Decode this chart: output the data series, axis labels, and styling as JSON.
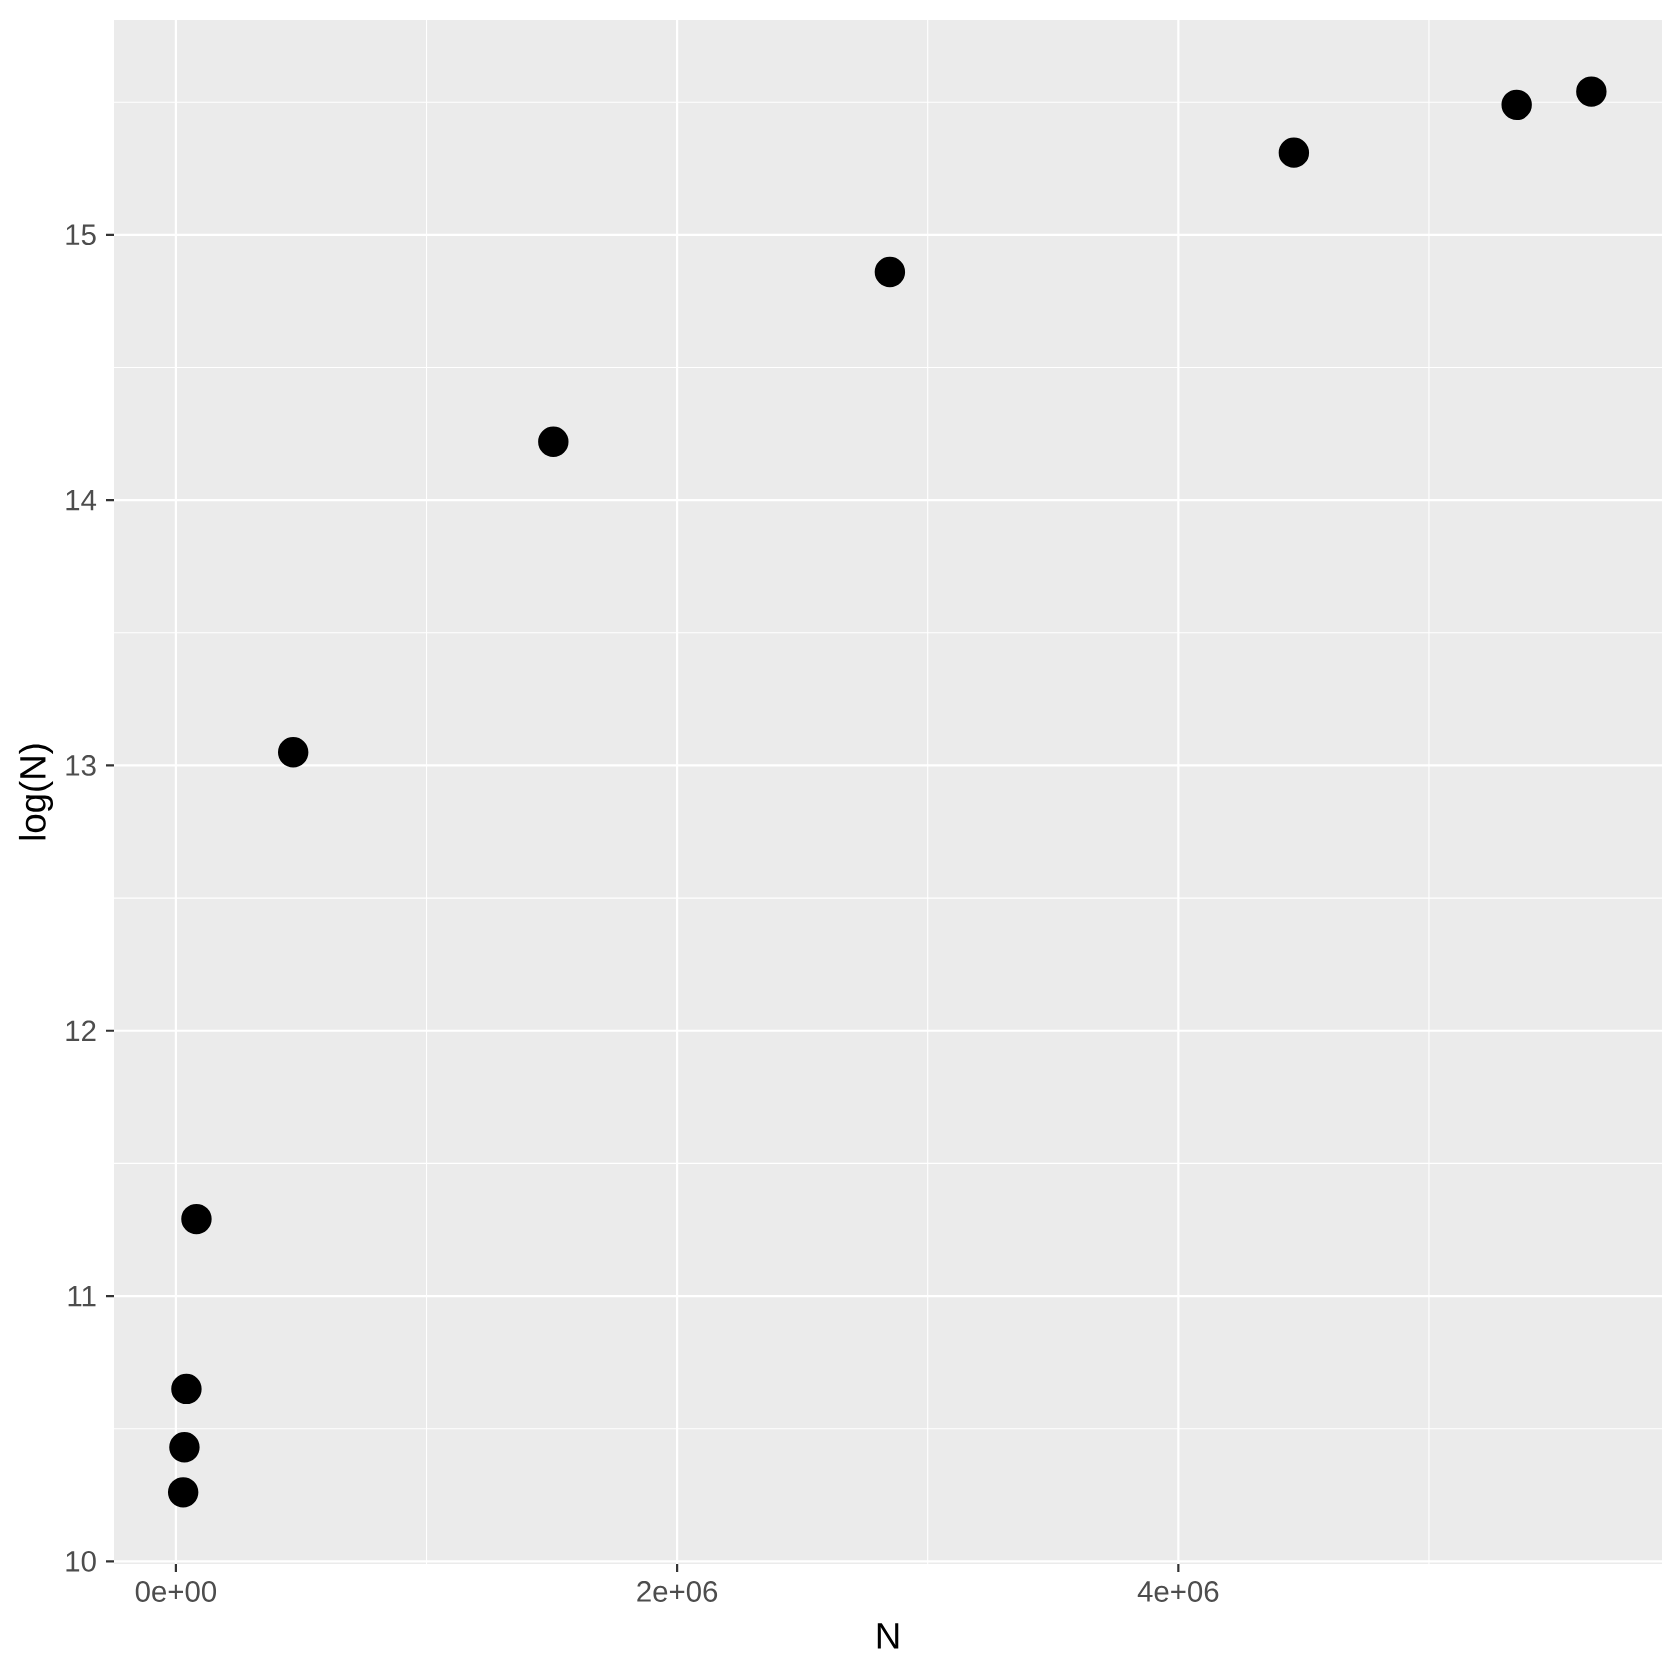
{
  "chart_data": {
    "type": "scatter",
    "xlabel": "N",
    "ylabel": "log(N)",
    "x": [
      29000,
      34000,
      42000,
      82000,
      468000,
      1506000,
      2849000,
      4461000,
      5350000,
      5648000
    ],
    "values": [
      10.26,
      10.43,
      10.65,
      11.29,
      13.05,
      14.22,
      14.86,
      15.31,
      15.49,
      15.54
    ],
    "color": "#000000",
    "marker": "circle",
    "xlim": [
      -247000,
      5930000
    ],
    "ylim": [
      9.99,
      15.81
    ],
    "xticks": [
      {
        "value": 0,
        "label": "0e+00"
      },
      {
        "value": 2000000,
        "label": "2e+06"
      },
      {
        "value": 4000000,
        "label": "4e+06"
      }
    ],
    "yticks": [
      10,
      11,
      12,
      13,
      14,
      15
    ],
    "grid": true
  }
}
